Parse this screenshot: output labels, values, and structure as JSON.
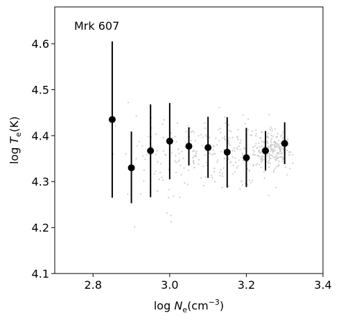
{
  "chart_data": {
    "type": "scatter",
    "annotation": "Mrk 607",
    "xlabel": {
      "prefix": "log ",
      "var": "N",
      "sub": "e",
      "unit_open": "(cm",
      "sup": "−3",
      "unit_close": ")"
    },
    "ylabel": {
      "prefix": "log ",
      "var": "T",
      "sub": "e",
      "unit": "(K)"
    },
    "xlim": [
      2.7,
      3.4
    ],
    "ylim": [
      4.1,
      4.68
    ],
    "xticks": [
      2.8,
      3.0,
      3.2,
      3.4
    ],
    "xtick_labels": [
      "2.8",
      "3.0",
      "3.2",
      "3.4"
    ],
    "yticks": [
      4.1,
      4.2,
      4.3,
      4.4,
      4.5,
      4.6
    ],
    "ytick_labels": [
      "4.1",
      "4.2",
      "4.3",
      "4.4",
      "4.5",
      "4.6"
    ],
    "grid": false,
    "colors": {
      "binned": "#000000",
      "background_points": "#cccccc"
    },
    "binned_points": [
      {
        "x": 2.85,
        "y": 4.435,
        "ylow": 4.265,
        "yhigh": 4.605
      },
      {
        "x": 2.9,
        "y": 4.33,
        "ylow": 4.253,
        "yhigh": 4.409
      },
      {
        "x": 2.95,
        "y": 4.367,
        "ylow": 4.266,
        "yhigh": 4.468
      },
      {
        "x": 3.0,
        "y": 4.388,
        "ylow": 4.305,
        "yhigh": 4.471
      },
      {
        "x": 3.05,
        "y": 4.377,
        "ylow": 4.335,
        "yhigh": 4.418
      },
      {
        "x": 3.1,
        "y": 4.374,
        "ylow": 4.308,
        "yhigh": 4.441
      },
      {
        "x": 3.15,
        "y": 4.364,
        "ylow": 4.287,
        "yhigh": 4.44
      },
      {
        "x": 3.2,
        "y": 4.352,
        "ylow": 4.288,
        "yhigh": 4.417
      },
      {
        "x": 3.25,
        "y": 4.367,
        "ylow": 4.324,
        "yhigh": 4.41
      },
      {
        "x": 3.3,
        "y": 4.383,
        "ylow": 4.338,
        "yhigh": 4.429
      }
    ]
  }
}
